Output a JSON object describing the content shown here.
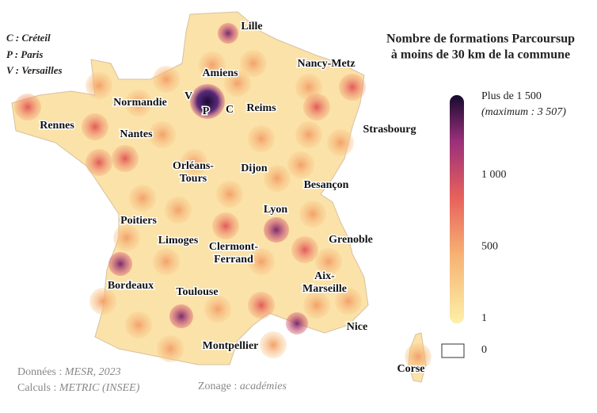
{
  "title": {
    "line1": "Nombre de formations Parcoursup",
    "line2": "à moins de 30 km de la commune"
  },
  "key": [
    "C : Créteil",
    "P : Paris",
    "V : Versailles"
  ],
  "academies": [
    [
      "Lille"
    ],
    [
      "Amiens"
    ],
    [
      "Nancy-Metz"
    ],
    [
      "Normandie"
    ],
    [
      "Reims"
    ],
    [
      "Rennes"
    ],
    [
      "Nantes"
    ],
    [
      "Strasbourg"
    ],
    [
      "Orléans-",
      "Tours"
    ],
    [
      "Dijon"
    ],
    [
      "Besançon"
    ],
    [
      "Lyon"
    ],
    [
      "Poitiers"
    ],
    [
      "Limoges"
    ],
    [
      "Clermont-",
      "Ferrand"
    ],
    [
      "Grenoble"
    ],
    [
      "Aix-",
      "Marseille"
    ],
    [
      "Bordeaux"
    ],
    [
      "Toulouse"
    ],
    [
      "Nice"
    ],
    [
      "Montpellier"
    ],
    [
      "Corse"
    ]
  ],
  "paris_letters": [
    "V",
    "P",
    "C"
  ],
  "legend": {
    "max_label": "Plus de 1 500",
    "max_note": "(maximum : 3 507)",
    "range": [
      1,
      1500
    ],
    "ticks": [
      {
        "value": 1000,
        "label": "1 000"
      },
      500,
      1
    ],
    "zero": 0
  },
  "sources": [
    {
      "label": "Données : ",
      "value": "MESR, 2023"
    },
    {
      "label": "Calculs : ",
      "value": "METRIC (INSEE)"
    },
    {
      "label": "Zonage : ",
      "value": "académies"
    }
  ]
}
